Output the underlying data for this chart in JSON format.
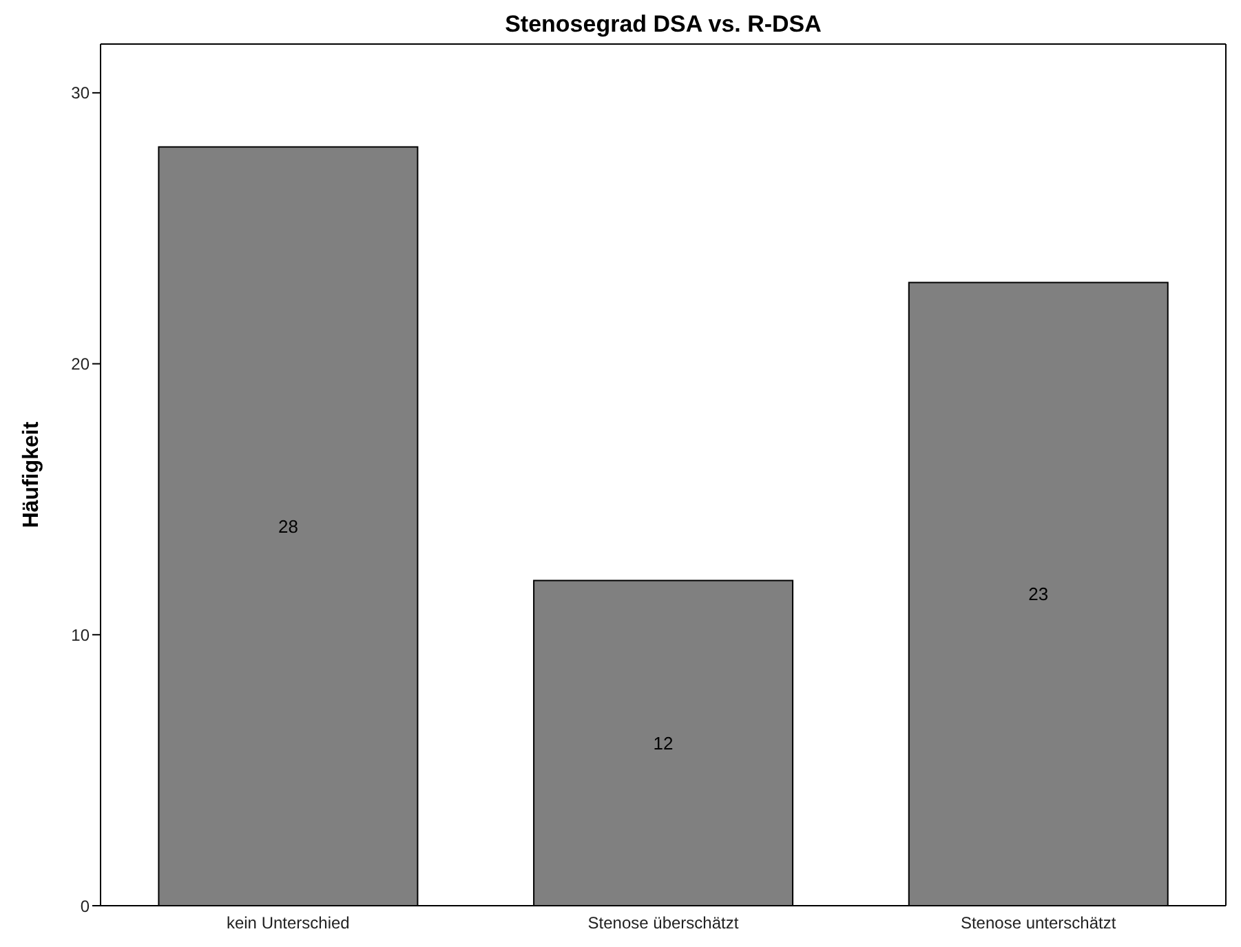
{
  "chart_data": {
    "type": "bar",
    "title": "Stenosegrad DSA vs. R-DSA",
    "ylabel": "Häufigkeit",
    "categories": [
      "kein Unterschied",
      "Stenose überschätzt",
      "Stenose unterschätzt"
    ],
    "values": [
      28,
      12,
      23
    ],
    "color": "#808080",
    "ylim": [
      0,
      31.8
    ],
    "yticks": [
      0,
      10,
      20,
      30
    ],
    "grid": false,
    "data_labels": true,
    "legend": false
  }
}
